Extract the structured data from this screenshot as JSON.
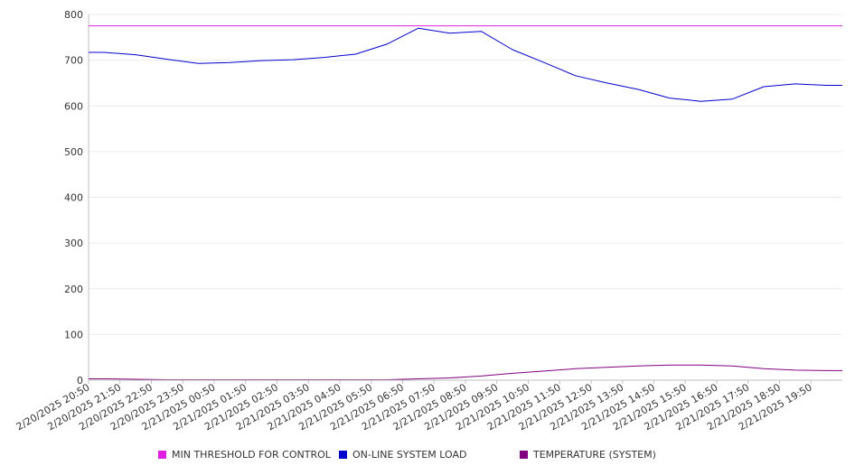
{
  "chart_data": {
    "type": "line",
    "title": "",
    "xlabel": "",
    "ylabel": "",
    "ylim": [
      0,
      800
    ],
    "y_ticks": [
      0,
      100,
      200,
      300,
      400,
      500,
      600,
      700,
      800
    ],
    "grid": true,
    "legend_position": "bottom",
    "categories": [
      "2/20/2025 20:50",
      "2/20/2025 21:50",
      "2/20/2025 22:50",
      "2/20/2025 23:50",
      "2/21/2025 00:50",
      "2/21/2025 01:50",
      "2/21/2025 02:50",
      "2/21/2025 03:50",
      "2/21/2025 04:50",
      "2/21/2025 05:50",
      "2/21/2025 06:50",
      "2/21/2025 07:50",
      "2/21/2025 08:50",
      "2/21/2025 09:50",
      "2/21/2025 10:50",
      "2/21/2025 11:50",
      "2/21/2025 12:50",
      "2/21/2025 13:50",
      "2/21/2025 14:50",
      "2/21/2025 15:50",
      "2/21/2025 16:50",
      "2/21/2025 17:50",
      "2/21/2025 18:50",
      "2/21/2025 19:50"
    ],
    "series": [
      {
        "name": "MIN THRESHOLD FOR CONTROL",
        "color": "#e020e0",
        "values": [
          775,
          775,
          775,
          775,
          775,
          775,
          775,
          775,
          775,
          775,
          775,
          775,
          775,
          775,
          775,
          775,
          775,
          775,
          775,
          775,
          775,
          775,
          775,
          775
        ]
      },
      {
        "name": "ON-LINE SYSTEM LOAD",
        "color": "#0000cc",
        "values": [
          717,
          712,
          702,
          693,
          695,
          699,
          701,
          706,
          713,
          735,
          770,
          759,
          763,
          723,
          695,
          666,
          650,
          636,
          617,
          610,
          615,
          642,
          648,
          645
        ]
      },
      {
        "name": "TEMPERATURE (SYSTEM)",
        "color": "#800080",
        "values": [
          3,
          2,
          1,
          1,
          1,
          1,
          1,
          1,
          1,
          1,
          3,
          5,
          9,
          15,
          20,
          25,
          28,
          31,
          33,
          33,
          31,
          25,
          22,
          21
        ]
      }
    ]
  }
}
